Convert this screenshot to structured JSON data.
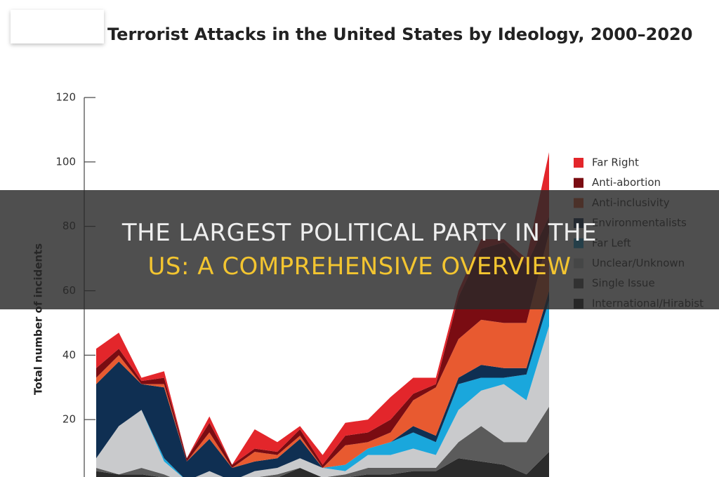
{
  "chart_data": {
    "type": "stacked-area",
    "title": "Terrorist Attacks in the United States by Ideology, 2000–2020",
    "y_label": "Total number of incidents",
    "categories": [
      null,
      null,
      null,
      null,
      null,
      null,
      null,
      null,
      null,
      null,
      null,
      null,
      null,
      null,
      null,
      null,
      null,
      null,
      null,
      null,
      null
    ],
    "ylim": [
      0,
      120
    ],
    "yticks": [
      20,
      40,
      60,
      80,
      100,
      120
    ],
    "series": [
      {
        "name": "Far Right",
        "color": "#e3262b",
        "values": [
          6,
          5,
          1,
          2,
          0,
          2,
          0,
          6,
          3,
          1,
          3,
          4,
          4,
          7,
          5,
          2,
          2,
          3,
          1,
          2,
          20
        ]
      },
      {
        "name": "Anti-abortion",
        "color": "#7a0c12",
        "values": [
          3,
          2,
          1,
          2,
          1,
          3,
          1,
          1,
          1,
          2,
          1,
          3,
          3,
          4,
          2,
          1,
          13,
          22,
          25,
          18,
          5
        ]
      },
      {
        "name": "Anti-inclusivity",
        "color": "#e85a30",
        "values": [
          2,
          2,
          0,
          1,
          0,
          2,
          0,
          3,
          1,
          1,
          0,
          6,
          2,
          3,
          8,
          15,
          12,
          14,
          14,
          14,
          18
        ]
      },
      {
        "name": "Environmentalists",
        "color": "#0f2f52",
        "values": [
          23,
          20,
          8,
          22,
          6,
          10,
          4,
          3,
          3,
          6,
          0,
          0,
          0,
          0,
          2,
          2,
          2,
          4,
          3,
          2,
          3
        ]
      },
      {
        "name": "Far Left",
        "color": "#1aa7dc",
        "values": [
          0,
          0,
          0,
          1,
          0,
          0,
          0,
          0,
          0,
          0,
          0,
          2,
          2,
          4,
          5,
          4,
          8,
          4,
          2,
          8,
          8
        ]
      },
      {
        "name": "Unclear/Unknown",
        "color": "#c9cacc",
        "values": [
          3,
          15,
          18,
          4,
          1,
          3,
          1,
          2,
          2,
          3,
          3,
          1,
          4,
          4,
          6,
          4,
          10,
          11,
          18,
          13,
          25
        ]
      },
      {
        "name": "Single Issue",
        "color": "#5b5b5b",
        "values": [
          1,
          0,
          2,
          1,
          0,
          1,
          0,
          1,
          1,
          0,
          0,
          1,
          2,
          2,
          1,
          1,
          5,
          11,
          7,
          10,
          14
        ]
      },
      {
        "name": "International/Hirabist",
        "color": "#2b2b2b",
        "values": [
          4,
          3,
          3,
          2,
          0,
          0,
          0,
          1,
          2,
          5,
          2,
          2,
          3,
          3,
          4,
          4,
          8,
          7,
          6,
          3,
          10
        ]
      }
    ]
  },
  "banner": {
    "lines": [
      "THE LARGEST POLITICAL PARTY IN THE",
      "US: A COMPREHENSIVE OVERVIEW"
    ]
  }
}
